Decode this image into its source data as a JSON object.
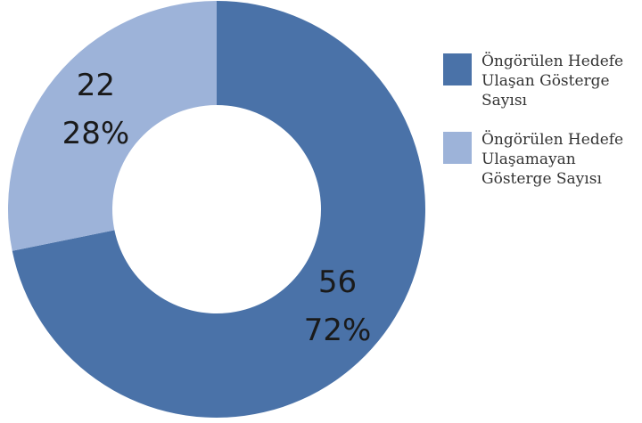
{
  "chart_data": {
    "type": "donut",
    "categories": [
      "Öngörülen Hedefe Ulaşan Gösterge Sayısı",
      "Öngörülen Hedefe Ulaşamayan Gösterge Sayısı"
    ],
    "values": [
      56,
      22
    ],
    "percent_labels": [
      "72%",
      "28%"
    ],
    "colors": [
      "#4a72a8",
      "#9db3d9"
    ],
    "legend": "right"
  }
}
